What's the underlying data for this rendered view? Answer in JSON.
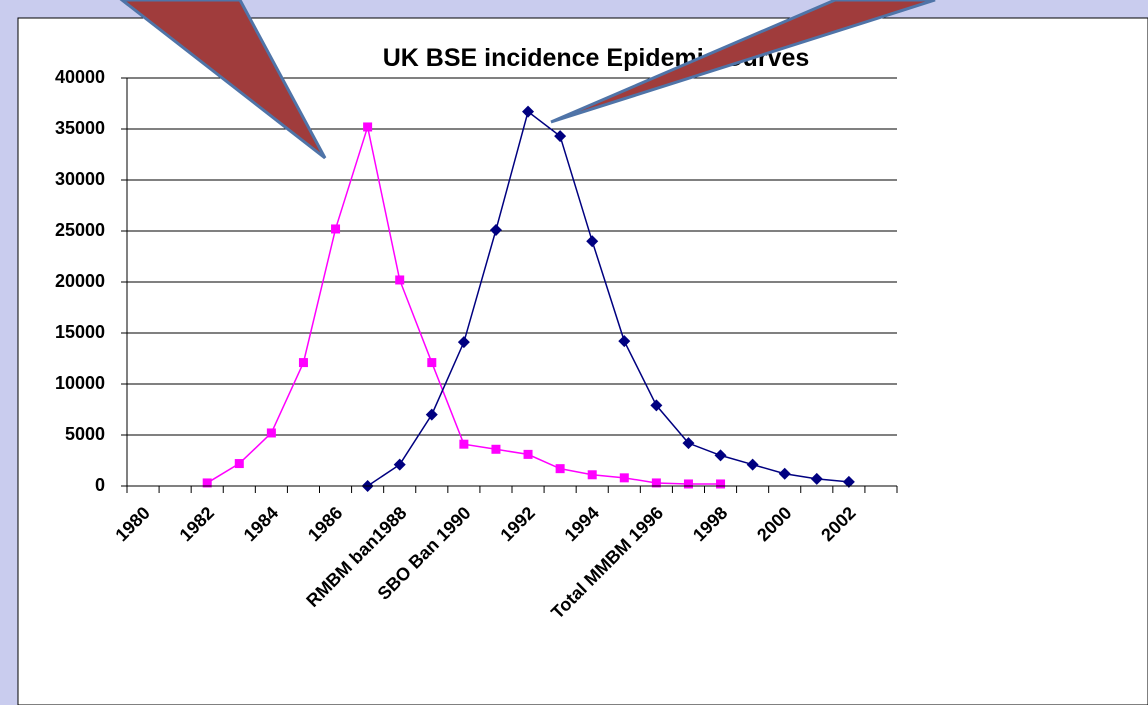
{
  "chart_data": {
    "type": "line",
    "title": "UK BSE incidence Epidemic Curves",
    "categories": [
      "1980",
      null,
      "1982",
      null,
      "1984",
      null,
      "1986",
      null,
      "RMBM ban1988",
      null,
      "SBO Ban 1990",
      null,
      "1992",
      null,
      "1994",
      null,
      "Total MMBM 1996",
      null,
      "1998",
      null,
      "2000",
      null,
      "2002",
      null
    ],
    "series": [
      {
        "color": "#ff00ff",
        "marker": "square",
        "values": [
          null,
          null,
          300,
          2200,
          5200,
          12100,
          25200,
          35200,
          20200,
          12100,
          4100,
          3600,
          3100,
          1700,
          1100,
          800,
          300,
          200,
          200,
          null,
          null,
          null,
          null,
          null
        ]
      },
      {
        "color": "#000080",
        "marker": "diamond",
        "values": [
          null,
          null,
          null,
          null,
          null,
          null,
          null,
          0,
          2100,
          7000,
          14100,
          25100,
          36700,
          34300,
          24000,
          14200,
          7900,
          4200,
          3000,
          2100,
          1200,
          700,
          400,
          null
        ]
      }
    ],
    "ylim": [
      0,
      40000
    ],
    "yticks": [
      0,
      5000,
      10000,
      15000,
      20000,
      25000,
      30000,
      35000,
      40000
    ],
    "grid": true
  }
}
